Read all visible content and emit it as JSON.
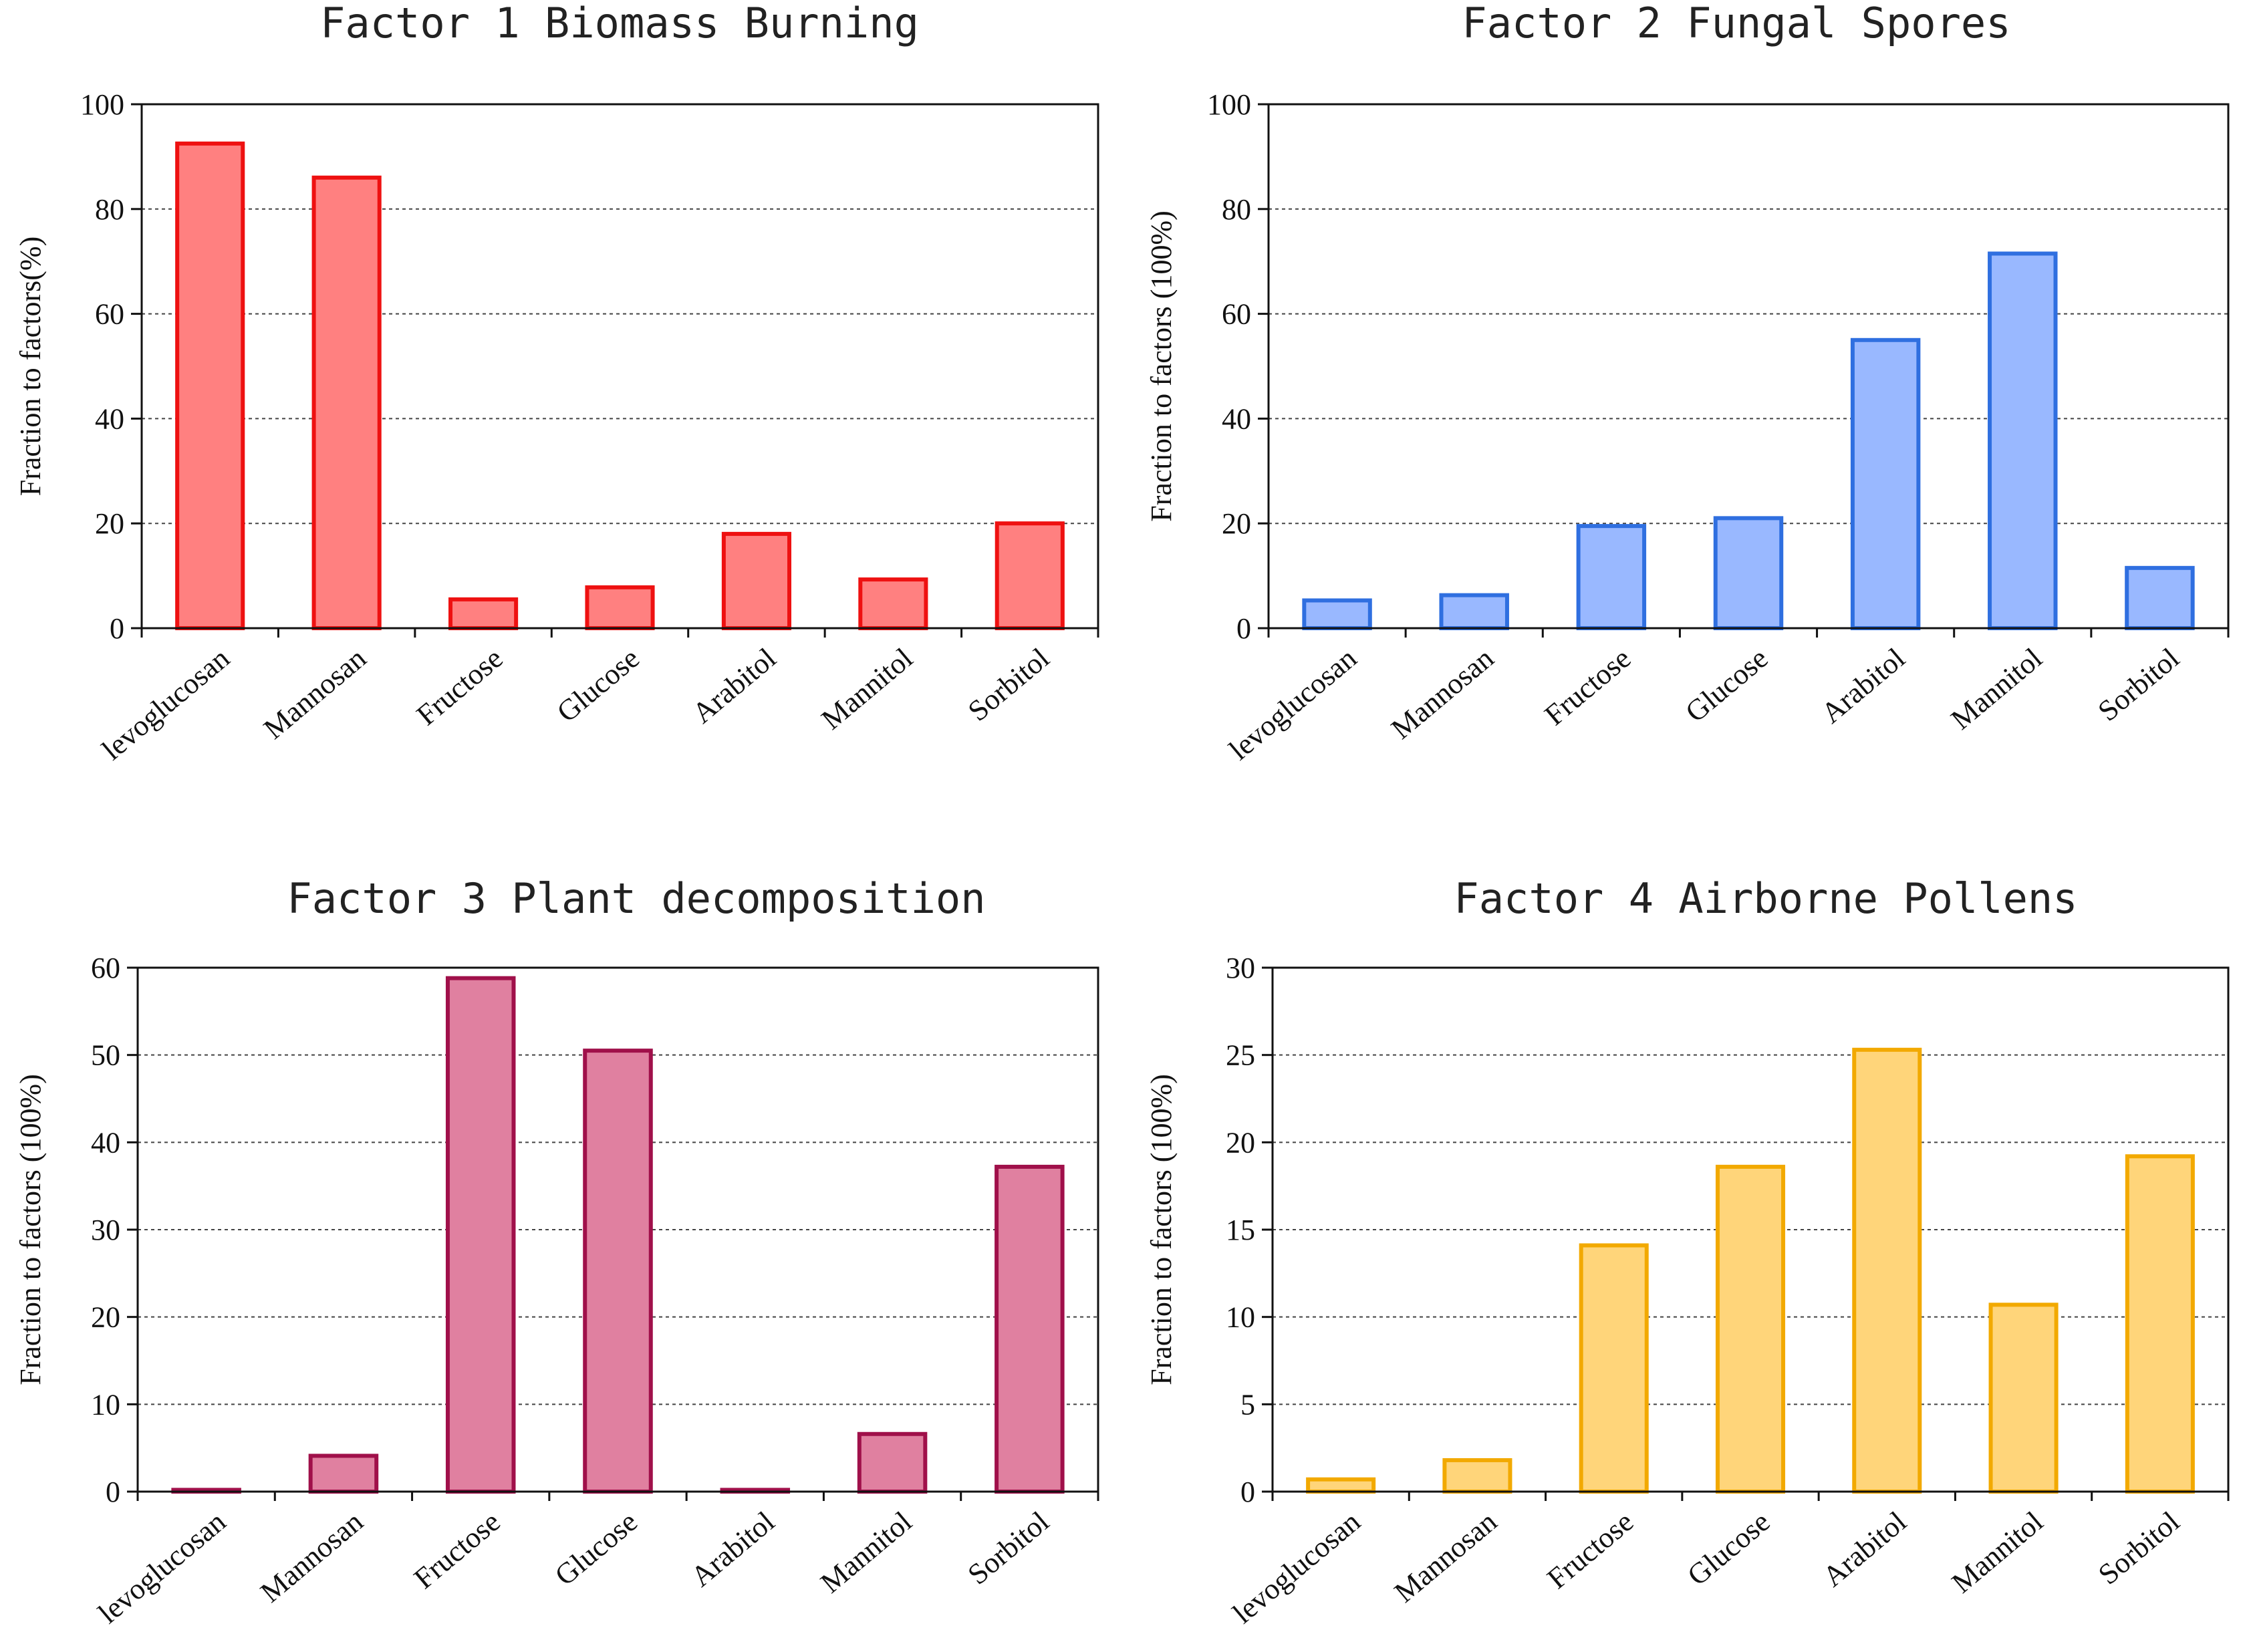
{
  "chart_data": [
    {
      "type": "bar",
      "title": "Factor 1 Biomass Burning",
      "ylabel": "Fraction to factors(%)",
      "xlabel": "",
      "ylim": [
        0,
        100
      ],
      "yticks": [
        0,
        20,
        40,
        60,
        80,
        100
      ],
      "categories": [
        "levoglucosan",
        "Mannosan",
        "Fructose",
        "Glucose",
        "Arabitol",
        "Mannitol",
        "Sorbitol"
      ],
      "values": [
        92.5,
        86,
        5.5,
        7.8,
        18,
        9.3,
        20
      ],
      "fill": "#ff8080",
      "stroke": "#ee1111",
      "grid": "dotted horizontal"
    },
    {
      "type": "bar",
      "title": "Factor 2 Fungal Spores",
      "ylabel": "Fraction to factors (100%)",
      "xlabel": "",
      "ylim": [
        0,
        100
      ],
      "yticks": [
        0,
        20,
        40,
        60,
        80,
        100
      ],
      "categories": [
        "levoglucosan",
        "Mannosan",
        "Fructose",
        "Glucose",
        "Arabitol",
        "Mannitol",
        "Sorbitol"
      ],
      "values": [
        5.3,
        6.3,
        19.5,
        21,
        55,
        71.5,
        11.5
      ],
      "fill": "#99b8ff",
      "stroke": "#2f6fe0",
      "grid": "dotted horizontal"
    },
    {
      "type": "bar",
      "title": "Factor 3 Plant decomposition",
      "ylabel": "Fraction to factors (100%)",
      "xlabel": "",
      "ylim": [
        0,
        60
      ],
      "yticks": [
        0,
        10,
        20,
        30,
        40,
        50,
        60
      ],
      "categories": [
        "levoglucosan",
        "Mannosan",
        "Fructose",
        "Glucose",
        "Arabitol",
        "Mannitol",
        "Sorbitol"
      ],
      "values": [
        0.2,
        4.1,
        58.8,
        50.5,
        0.2,
        6.6,
        37.2
      ],
      "fill": "#e080a0",
      "stroke": "#a0104a",
      "grid": "dotted horizontal"
    },
    {
      "type": "bar",
      "title": "Factor 4 Airborne Pollens",
      "ylabel": "Fraction to factors (100%)",
      "xlabel": "",
      "ylim": [
        0,
        30
      ],
      "yticks": [
        0,
        5,
        10,
        15,
        20,
        25,
        30
      ],
      "categories": [
        "levoglucosan",
        "Mannosan",
        "Fructose",
        "Glucose",
        "Arabitol",
        "Mannitol",
        "Sorbitol"
      ],
      "values": [
        0.7,
        1.8,
        14.1,
        18.6,
        25.3,
        10.7,
        19.2
      ],
      "fill": "#ffd57a",
      "stroke": "#f2a900",
      "grid": "dotted horizontal"
    }
  ]
}
